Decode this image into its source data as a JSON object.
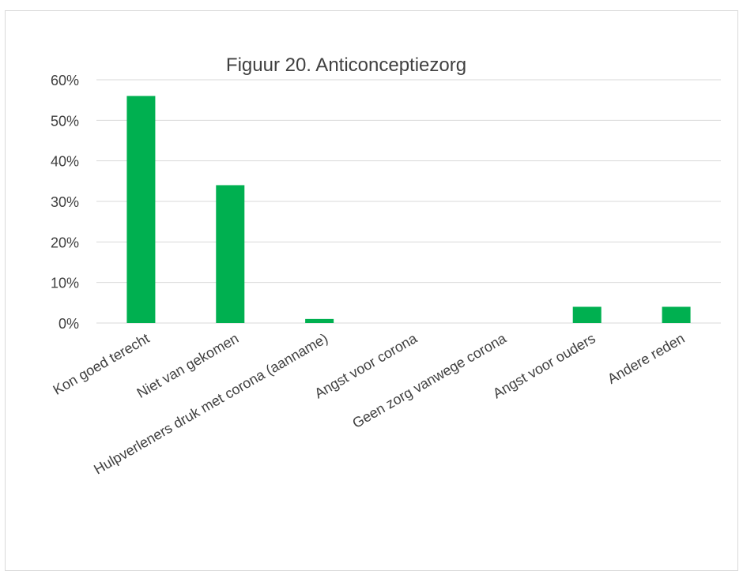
{
  "chart_data": {
    "type": "bar",
    "title": "Figuur 20. Anticonceptiezorg",
    "xlabel": "",
    "ylabel": "",
    "categories": [
      "Kon goed terecht",
      "Niet van gekomen",
      "Hulpverleners druk met corona (aanname)",
      "Angst voor corona",
      "Geen zorg vanwege corona",
      "Angst voor ouders",
      "Andere reden"
    ],
    "values": [
      0.56,
      0.34,
      0.01,
      0,
      0,
      0.04,
      0.04
    ],
    "ylim": [
      0,
      0.6
    ],
    "yticks": [
      0,
      0.1,
      0.2,
      0.3,
      0.4,
      0.5,
      0.6
    ],
    "ytick_labels": [
      "0%",
      "10%",
      "20%",
      "30%",
      "40%",
      "50%",
      "60%"
    ],
    "grid": true,
    "legend": "none",
    "colors": {
      "bar": "#00b050",
      "grid": "#d9d9d9",
      "text": "#404040"
    }
  }
}
